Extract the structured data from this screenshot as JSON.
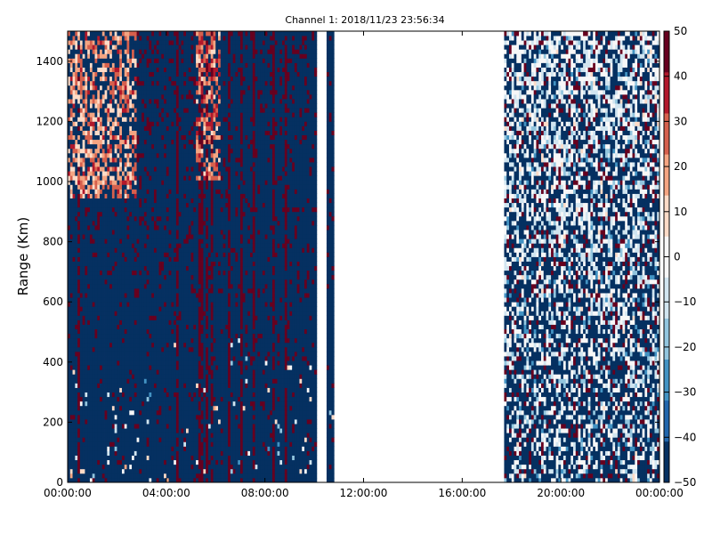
{
  "chart_data": {
    "type": "heatmap",
    "title": "Channel 1: 2018/11/23 23:56:34",
    "xlabel": "",
    "ylabel": "Range (Km)",
    "xlim": [
      "00:00:00",
      "24:00:00"
    ],
    "ylim": [
      0,
      1500
    ],
    "x_ticks": [
      "00:00:00",
      "04:00:00",
      "08:00:00",
      "12:00:00",
      "16:00:00",
      "20:00:00",
      "00:00:00"
    ],
    "y_ticks": [
      0,
      200,
      400,
      600,
      800,
      1000,
      1200,
      1400
    ],
    "colorbar": {
      "ticks": [
        50,
        40,
        30,
        20,
        10,
        0,
        -10,
        -20,
        -30,
        -40,
        -50
      ],
      "range": [
        -50,
        50
      ],
      "colormap": "RdBu_r",
      "colors": [
        "#053061",
        "#2166ac",
        "#4393c3",
        "#92c5de",
        "#d1e5f0",
        "#f7f7f7",
        "#fddbc7",
        "#f4a582",
        "#d6604d",
        "#b2182b",
        "#67001f"
      ]
    },
    "data_gaps": [
      {
        "from": "10:05",
        "to": "10:30"
      },
      {
        "from": "10:50",
        "to": "17:45"
      }
    ],
    "regions": [
      {
        "time_range": [
          "00:00",
          "02:50"
        ],
        "range_km": [
          950,
          1500
        ],
        "approx_value": 20
      },
      {
        "time_range": [
          "05:15",
          "06:15"
        ],
        "range_km": [
          1000,
          1500
        ],
        "approx_value": 25
      },
      {
        "time_range": [
          "00:00",
          "10:05"
        ],
        "range_km": [
          0,
          950
        ],
        "approx_value": -50
      },
      {
        "time_range": [
          "17:45",
          "24:00"
        ],
        "range_km": [
          0,
          1500
        ],
        "approx_value": -15
      }
    ]
  }
}
